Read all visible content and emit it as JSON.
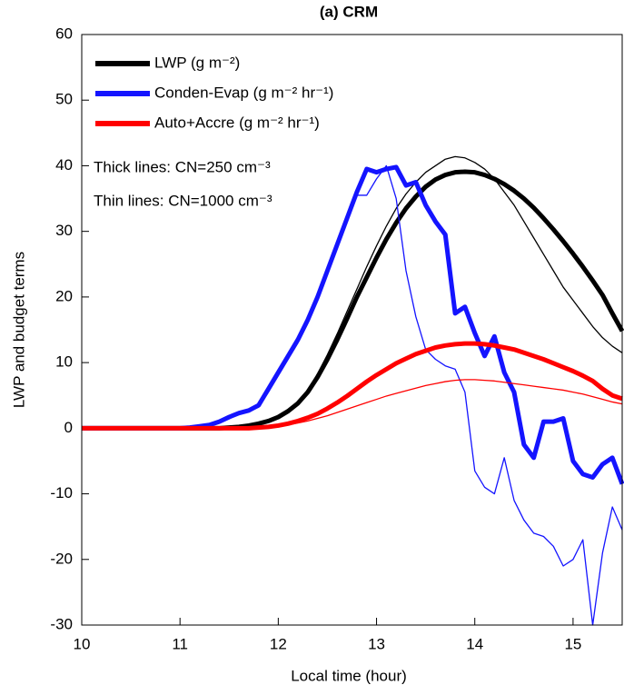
{
  "chart_data": {
    "type": "line",
    "title": "(a) CRM",
    "xlabel": "Local time (hour)",
    "ylabel": "LWP and budget terms",
    "annotations": [
      "Thick lines: CN=250 cm⁻³",
      "Thin lines: CN=1000 cm⁻³"
    ],
    "x": [
      10,
      10.5,
      11,
      11.1,
      11.2,
      11.3,
      11.4,
      11.5,
      11.6,
      11.7,
      11.8,
      11.9,
      12,
      12.1,
      12.2,
      12.3,
      12.4,
      12.5,
      12.6,
      12.7,
      12.8,
      12.9,
      13,
      13.1,
      13.2,
      13.3,
      13.4,
      13.5,
      13.6,
      13.7,
      13.8,
      13.9,
      14,
      14.1,
      14.2,
      14.3,
      14.4,
      14.5,
      14.6,
      14.7,
      14.8,
      14.9,
      15,
      15.1,
      15.2,
      15.3,
      15.4,
      15.5
    ],
    "xlim": [
      10,
      15.5
    ],
    "xticks": [
      10,
      11,
      12,
      13,
      14,
      15
    ],
    "ylim": [
      -30,
      60
    ],
    "yticks": [
      -30,
      -20,
      -10,
      0,
      10,
      20,
      30,
      40,
      50,
      60
    ],
    "series": [
      {
        "name": "LWP (g m⁻²)",
        "color": "#000000",
        "values": [
          0,
          0,
          0,
          0,
          0,
          0,
          0,
          0.1,
          0.2,
          0.4,
          0.7,
          1.1,
          1.7,
          2.6,
          3.8,
          5.5,
          7.8,
          10.5,
          13.5,
          16.7,
          20,
          23,
          26,
          28.8,
          31.3,
          33.5,
          35.3,
          36.8,
          37.9,
          38.6,
          39,
          39.1,
          39,
          38.6,
          38,
          37.2,
          36.2,
          35,
          33.6,
          32,
          30.3,
          28.5,
          26.6,
          24.6,
          22.5,
          20.3,
          17.5,
          14.8
        ],
        "thin_values": [
          0,
          0,
          0,
          0,
          0,
          0,
          0,
          0.1,
          0.2,
          0.4,
          0.7,
          1.1,
          1.7,
          2.7,
          4,
          5.8,
          8.3,
          11.2,
          14.4,
          17.8,
          21.2,
          24.6,
          27.8,
          30.8,
          33.5,
          35.7,
          37.5,
          39,
          40,
          41,
          41.4,
          41.2,
          40.5,
          39.5,
          38,
          36,
          34,
          31.5,
          29,
          26.5,
          24,
          21.5,
          19.5,
          17.5,
          15.5,
          13.8,
          12.5,
          11.5
        ]
      },
      {
        "name": "Conden-Evap (g m⁻² hr⁻¹)",
        "color": "#1414ff",
        "values": [
          0,
          0,
          0,
          0.1,
          0.3,
          0.5,
          1,
          1.7,
          2.3,
          2.7,
          3.5,
          6,
          8.5,
          11,
          13.5,
          16.5,
          20,
          24,
          28,
          32,
          36,
          39.5,
          39,
          39.5,
          39.8,
          37,
          37.5,
          34,
          31.5,
          29.5,
          17.5,
          18.5,
          14.5,
          11,
          14,
          8.5,
          5.5,
          -2.5,
          -4.5,
          1,
          1,
          1.5,
          -5,
          -7,
          -7.5,
          -5.5,
          -4.5,
          -8.5
        ],
        "thin_values": [
          0,
          0,
          0,
          0.1,
          0.3,
          0.5,
          0.9,
          1.5,
          2.1,
          2.6,
          3.2,
          5.5,
          8,
          10.5,
          13,
          16,
          19.5,
          23.5,
          27.5,
          31.5,
          35.5,
          35.5,
          38,
          40,
          35,
          24,
          17,
          12,
          10.5,
          9.5,
          9,
          5.5,
          -6.5,
          -9,
          -10,
          -4.5,
          -11,
          -14,
          -16,
          -16.5,
          -18,
          -21,
          -20,
          -17,
          -30,
          -19,
          -12,
          -15.5
        ]
      },
      {
        "name": "Auto+Accre (g m⁻² hr⁻¹)",
        "color": "#ff0000",
        "values": [
          0,
          0,
          0,
          0,
          0,
          0,
          0,
          0,
          0,
          0,
          0.1,
          0.2,
          0.4,
          0.7,
          1.1,
          1.6,
          2.2,
          3,
          3.9,
          4.9,
          6,
          7.1,
          8.1,
          9,
          9.9,
          10.6,
          11.3,
          11.8,
          12.3,
          12.6,
          12.8,
          12.9,
          12.9,
          12.8,
          12.6,
          12.3,
          12,
          11.5,
          11,
          10.5,
          9.9,
          9.3,
          8.7,
          8,
          7.2,
          6,
          5,
          4.5
        ],
        "thin_values": [
          0,
          0,
          0,
          0,
          0,
          0,
          0,
          0,
          0,
          0,
          0.1,
          0.1,
          0.3,
          0.5,
          0.8,
          1.1,
          1.5,
          1.9,
          2.4,
          2.9,
          3.4,
          3.9,
          4.4,
          4.9,
          5.3,
          5.7,
          6.1,
          6.5,
          6.8,
          7.1,
          7.3,
          7.4,
          7.4,
          7.3,
          7.2,
          7,
          6.8,
          6.6,
          6.4,
          6.2,
          6,
          5.8,
          5.5,
          5.2,
          4.8,
          4.4,
          4,
          3.7
        ]
      }
    ]
  }
}
